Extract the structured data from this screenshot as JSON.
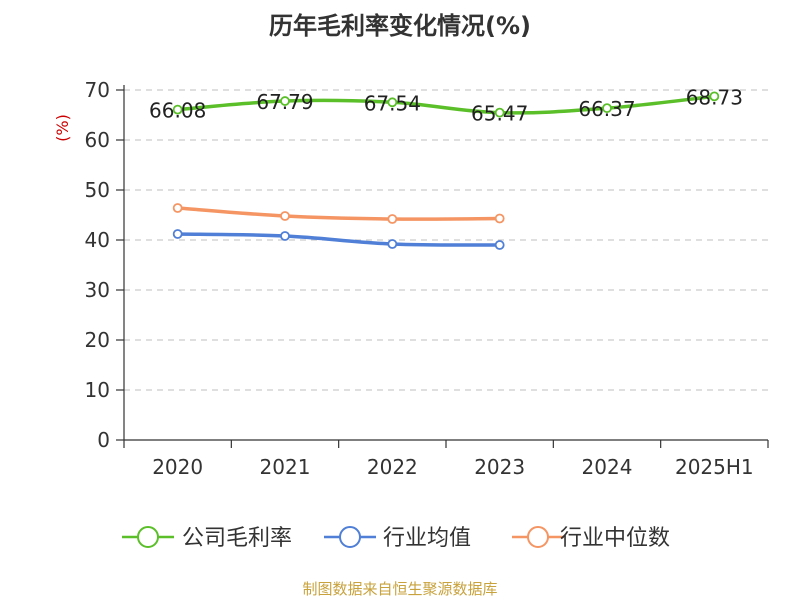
{
  "chart_data": {
    "type": "line",
    "title": "历年毛利率变化情况(%)",
    "ylabel": "(%)",
    "xlabel": "",
    "categories": [
      "2020",
      "2021",
      "2022",
      "2023",
      "2024",
      "2025H1"
    ],
    "ylim": [
      0,
      70
    ],
    "yticks": [
      0,
      10,
      20,
      30,
      40,
      50,
      60,
      70
    ],
    "grid": true,
    "legend_position": "bottom",
    "series": [
      {
        "name": "公司毛利率",
        "color": "#5bbf2a",
        "values": [
          66.08,
          67.79,
          67.54,
          65.47,
          66.37,
          68.73
        ],
        "labels": [
          "66.08",
          "67.79",
          "67.54",
          "65.47",
          "66.37",
          "68.73"
        ]
      },
      {
        "name": "行业均值",
        "color": "#4f7fd6",
        "values": [
          41.2,
          40.8,
          39.2,
          39.0,
          null,
          null
        ],
        "labels": []
      },
      {
        "name": "行业中位数",
        "color": "#f59563",
        "values": [
          46.4,
          44.8,
          44.2,
          44.3,
          null,
          null
        ],
        "labels": []
      }
    ]
  },
  "footer": {
    "source": "制图数据来自恒生聚源数据库"
  }
}
